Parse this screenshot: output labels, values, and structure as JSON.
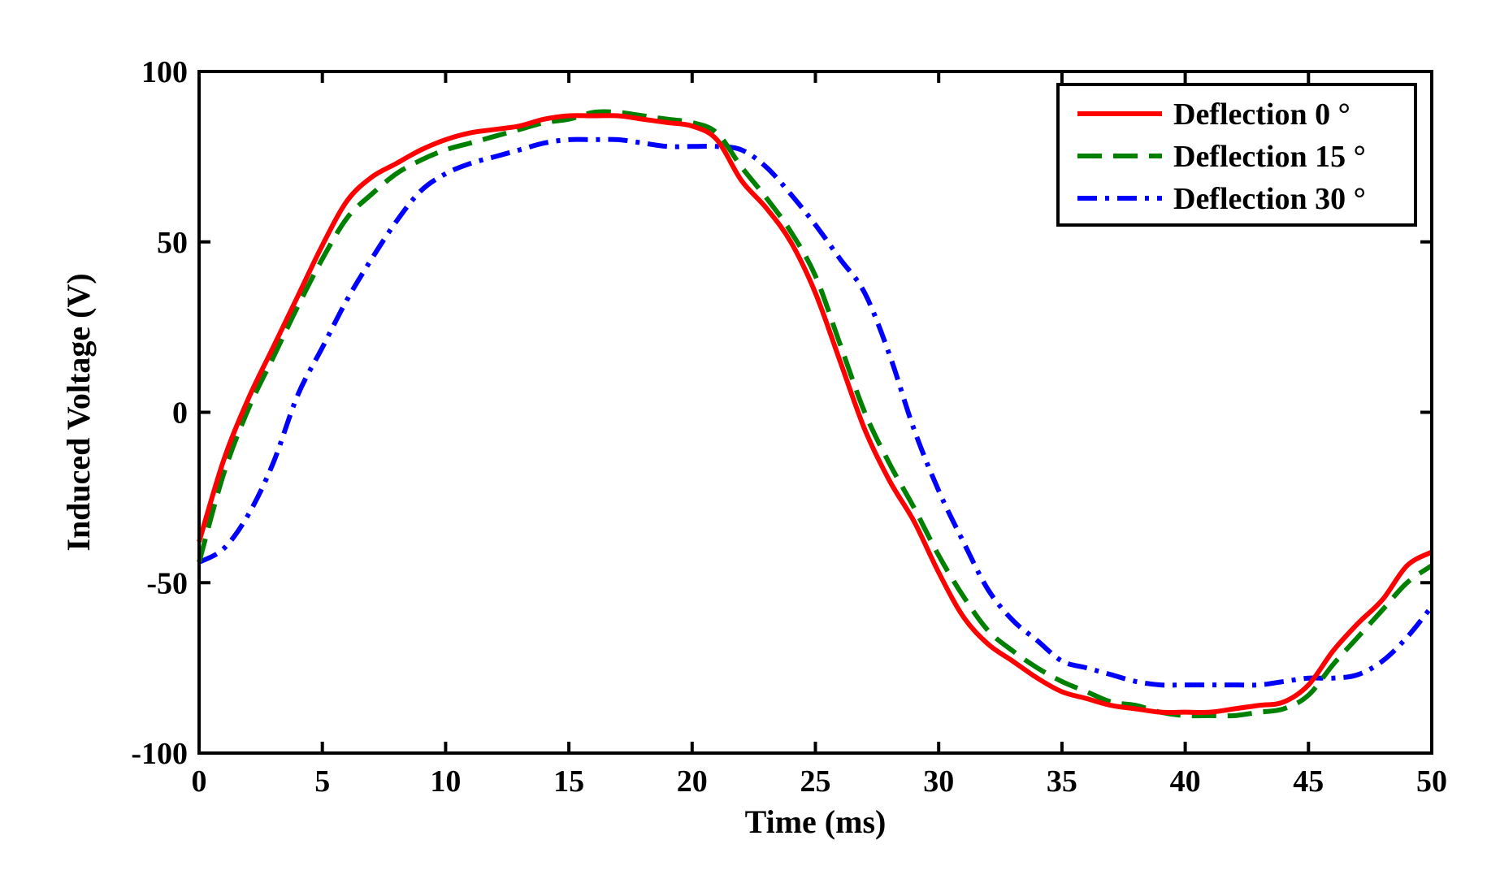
{
  "chart_data": {
    "type": "line",
    "title": "",
    "xlabel": "Time (ms)",
    "ylabel": "Induced Voltage (V)",
    "xlim": [
      0,
      50
    ],
    "ylim": [
      -100,
      100
    ],
    "xticks": [
      "0",
      "5",
      "10",
      "15",
      "20",
      "25",
      "30",
      "35",
      "40",
      "45",
      "50"
    ],
    "yticks": [
      "-100",
      "-50",
      "0",
      "50",
      "100"
    ],
    "grid": false,
    "legend_position": "top-right",
    "x": [
      0,
      1,
      2,
      3,
      4,
      5,
      6,
      7,
      8,
      9,
      10,
      11,
      12,
      13,
      14,
      15,
      16,
      17,
      18,
      19,
      20,
      21,
      22,
      23,
      24,
      25,
      26,
      27,
      28,
      29,
      30,
      31,
      32,
      33,
      34,
      35,
      36,
      37,
      38,
      39,
      40,
      41,
      42,
      43,
      44,
      45,
      46,
      47,
      48,
      49,
      50
    ],
    "series": [
      {
        "name": "Deflection 0 °",
        "color": "#ff0000",
        "style": "solid",
        "values": [
          -38,
          -14,
          4,
          19,
          34,
          49,
          62,
          69,
          73,
          77,
          80,
          82,
          83,
          84,
          86,
          87,
          87,
          87,
          86,
          85,
          84,
          80,
          68,
          60,
          50,
          35,
          15,
          -5,
          -20,
          -32,
          -47,
          -60,
          -68,
          -73,
          -78,
          -82,
          -84,
          -86,
          -87,
          -88,
          -88,
          -88,
          -87,
          -86,
          -85,
          -80,
          -70,
          -62,
          -55,
          -45,
          -41
        ]
      },
      {
        "name": "Deflection 15 °",
        "color": "#008000",
        "style": "dashed",
        "values": [
          -44,
          -18,
          1,
          16,
          31,
          45,
          57,
          64,
          70,
          74,
          77,
          79,
          81,
          83,
          85,
          86,
          88,
          88,
          87,
          86,
          85,
          82,
          72,
          63,
          53,
          40,
          20,
          0,
          -15,
          -28,
          -42,
          -54,
          -64,
          -70,
          -75,
          -79,
          -82,
          -85,
          -86,
          -88,
          -89,
          -89,
          -89,
          -88,
          -87,
          -83,
          -74,
          -66,
          -58,
          -50,
          -45
        ]
      },
      {
        "name": "Deflection 30 °",
        "color": "#0000ff",
        "style": "dashdot",
        "values": [
          -44,
          -40,
          -30,
          -15,
          5,
          19,
          33,
          45,
          56,
          65,
          70,
          73,
          75,
          77,
          79,
          80,
          80,
          80,
          79,
          78,
          78,
          78,
          77,
          72,
          64,
          55,
          45,
          35,
          17,
          -5,
          -23,
          -38,
          -52,
          -61,
          -67,
          -73,
          -75,
          -77,
          -79,
          -80,
          -80,
          -80,
          -80,
          -80,
          -79,
          -78,
          -78,
          -77,
          -73,
          -66,
          -57
        ]
      }
    ]
  }
}
